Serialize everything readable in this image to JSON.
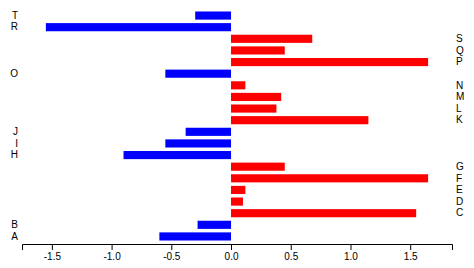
{
  "chart_data": {
    "type": "bar",
    "orientation": "horizontal",
    "categories": [
      "T",
      "R",
      "S",
      "Q",
      "P",
      "O",
      "N",
      "M",
      "L",
      "K",
      "J",
      "I",
      "H",
      "G",
      "F",
      "E",
      "D",
      "C",
      "B",
      "A"
    ],
    "values": [
      -0.3,
      -1.55,
      0.68,
      0.45,
      1.65,
      -0.55,
      0.12,
      0.42,
      0.38,
      1.15,
      -0.38,
      -0.55,
      -0.9,
      0.45,
      1.65,
      0.12,
      0.1,
      1.55,
      -0.28,
      -0.6
    ],
    "colors": [
      "#0000FF",
      "#0000FF",
      "#FF0000",
      "#FF0000",
      "#FF0000",
      "#0000FF",
      "#FF0000",
      "#FF0000",
      "#FF0000",
      "#FF0000",
      "#0000FF",
      "#0000FF",
      "#0000FF",
      "#FF0000",
      "#FF0000",
      "#FF0000",
      "#FF0000",
      "#FF0000",
      "#0000FF",
      "#0000FF"
    ],
    "xlim": [
      -1.75,
      1.85
    ],
    "xticks": [
      -1.5,
      {
        "value": -1.0,
        "label": "-1.0"
      },
      -0.5,
      {
        "value": 0.0,
        "label": "0.0"
      },
      0.5,
      {
        "value": 1.0,
        "label": "1.0"
      },
      1.5
    ]
  }
}
